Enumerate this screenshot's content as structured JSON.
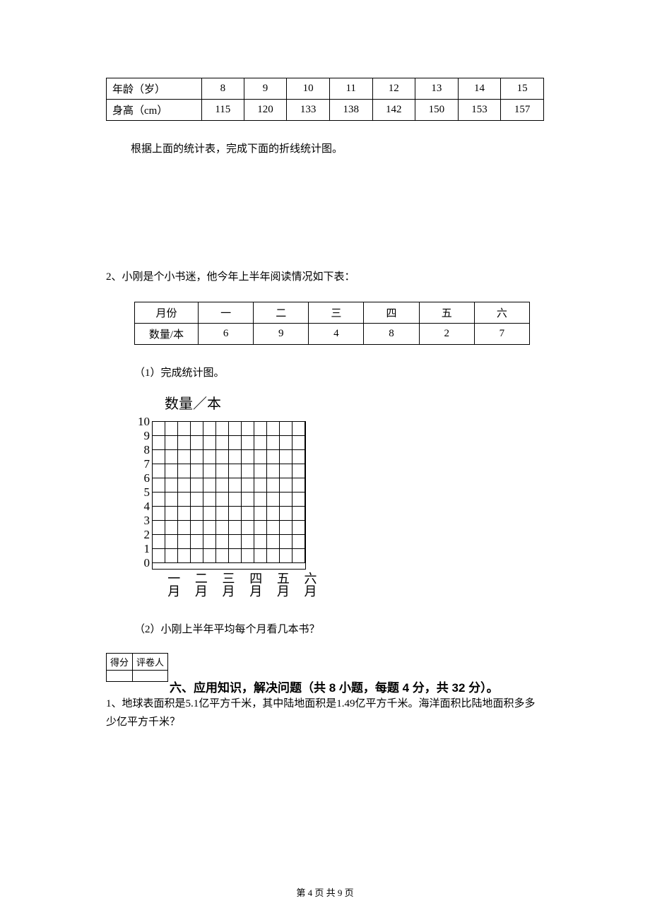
{
  "age_table": {
    "row1_label": "年龄（岁）",
    "row1_values": [
      "8",
      "9",
      "10",
      "11",
      "12",
      "13",
      "14",
      "15"
    ],
    "row2_label": "身高（cm）",
    "row2_values": [
      "115",
      "120",
      "133",
      "138",
      "142",
      "150",
      "153",
      "157"
    ]
  },
  "instruction_text": "根据上面的统计表，完成下面的折线统计图。",
  "q2_intro": "2、小刚是个小书迷，他今年上半年阅读情况如下表：",
  "reading_table": {
    "row1_label": "月份",
    "row1_values": [
      "一",
      "二",
      "三",
      "四",
      "五",
      "六"
    ],
    "row2_label": "数量/本",
    "row2_values": [
      "6",
      "9",
      "4",
      "8",
      "2",
      "7"
    ]
  },
  "sub_q1": "（1）完成统计图。",
  "chart": {
    "y_label": "数量／本",
    "y_ticks": [
      "10",
      "9",
      "8",
      "7",
      "6",
      "5",
      "4",
      "3",
      "2",
      "1",
      "0"
    ],
    "x_ticks": [
      "一月",
      "二月",
      "三月",
      "四月",
      "五月",
      "六月"
    ],
    "grid_rows": 10,
    "grid_cols": 12
  },
  "sub_q2": "（2）小刚上半年平均每个月看几本书？",
  "score_box": {
    "col1": "得分",
    "col2": "评卷人"
  },
  "section_heading": "六、应用知识，解决问题（共 8 小题，每题 4 分，共 32 分）。",
  "word_problem_1": "1、地球表面积是5.1亿平方千米，其中陆地面积是1.49亿平方千米。海洋面积比陆地面积多多少亿平方千米？",
  "footer": "第 4 页 共 9 页"
}
